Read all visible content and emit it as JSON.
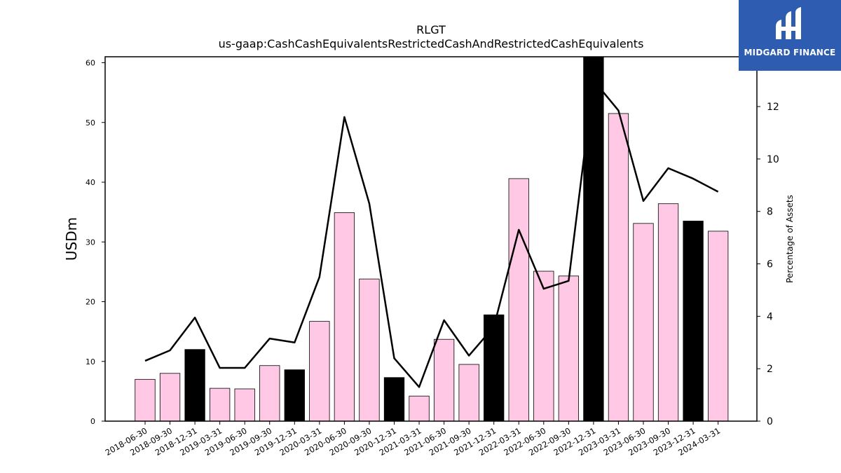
{
  "chart_data": {
    "type": "bar",
    "title": "RLGT",
    "subtitle": "us-gaap:CashCashEquivalentsRestrictedCashAndRestrictedCashEquivalents",
    "ylabel": "USDm",
    "y2label": "Percentage of Assets",
    "ylim": [
      0,
      61
    ],
    "y2lim": [
      0,
      13.9
    ],
    "yticks": [
      0,
      10,
      20,
      30,
      40,
      50,
      60
    ],
    "y2ticks": [
      0,
      2,
      4,
      6,
      8,
      10,
      12
    ],
    "categories": [
      "2018-06-30",
      "2018-09-30",
      "2018-12-31",
      "2019-03-31",
      "2019-06-30",
      "2019-09-30",
      "2019-12-31",
      "2020-03-31",
      "2020-06-30",
      "2020-09-30",
      "2020-12-31",
      "2021-03-31",
      "2021-06-30",
      "2021-09-30",
      "2021-12-31",
      "2022-03-31",
      "2022-06-30",
      "2022-09-30",
      "2022-12-31",
      "2023-03-31",
      "2023-06-30",
      "2023-09-30",
      "2023-12-31",
      "2024-03-31"
    ],
    "series": [
      {
        "axis": "left",
        "kind": "bar",
        "values": [
          7.0,
          8.0,
          12.0,
          5.5,
          5.4,
          9.3,
          8.6,
          16.7,
          34.9,
          23.8,
          7.3,
          4.2,
          13.7,
          9.5,
          17.8,
          40.6,
          25.1,
          24.3,
          61.0,
          51.5,
          33.1,
          36.4,
          33.5,
          31.8
        ],
        "colors": [
          "#ffc8e4",
          "#ffc8e4",
          "#000000",
          "#ffc8e4",
          "#ffc8e4",
          "#ffc8e4",
          "#000000",
          "#ffc8e4",
          "#ffc8e4",
          "#ffc8e4",
          "#000000",
          "#ffc8e4",
          "#ffc8e4",
          "#ffc8e4",
          "#000000",
          "#ffc8e4",
          "#ffc8e4",
          "#ffc8e4",
          "#000000",
          "#ffc8e4",
          "#ffc8e4",
          "#ffc8e4",
          "#000000",
          "#ffc8e4"
        ]
      },
      {
        "axis": "right",
        "kind": "line",
        "color": "#000000",
        "values": [
          2.3,
          2.7,
          3.95,
          2.03,
          2.03,
          3.15,
          3.0,
          5.5,
          11.6,
          8.3,
          2.4,
          1.3,
          3.85,
          2.5,
          3.6,
          7.3,
          5.05,
          5.35,
          13.0,
          11.85,
          8.4,
          9.65,
          9.25,
          8.75
        ]
      }
    ],
    "grid": false
  },
  "logo": {
    "text": "MIDGARD FINANCE"
  }
}
